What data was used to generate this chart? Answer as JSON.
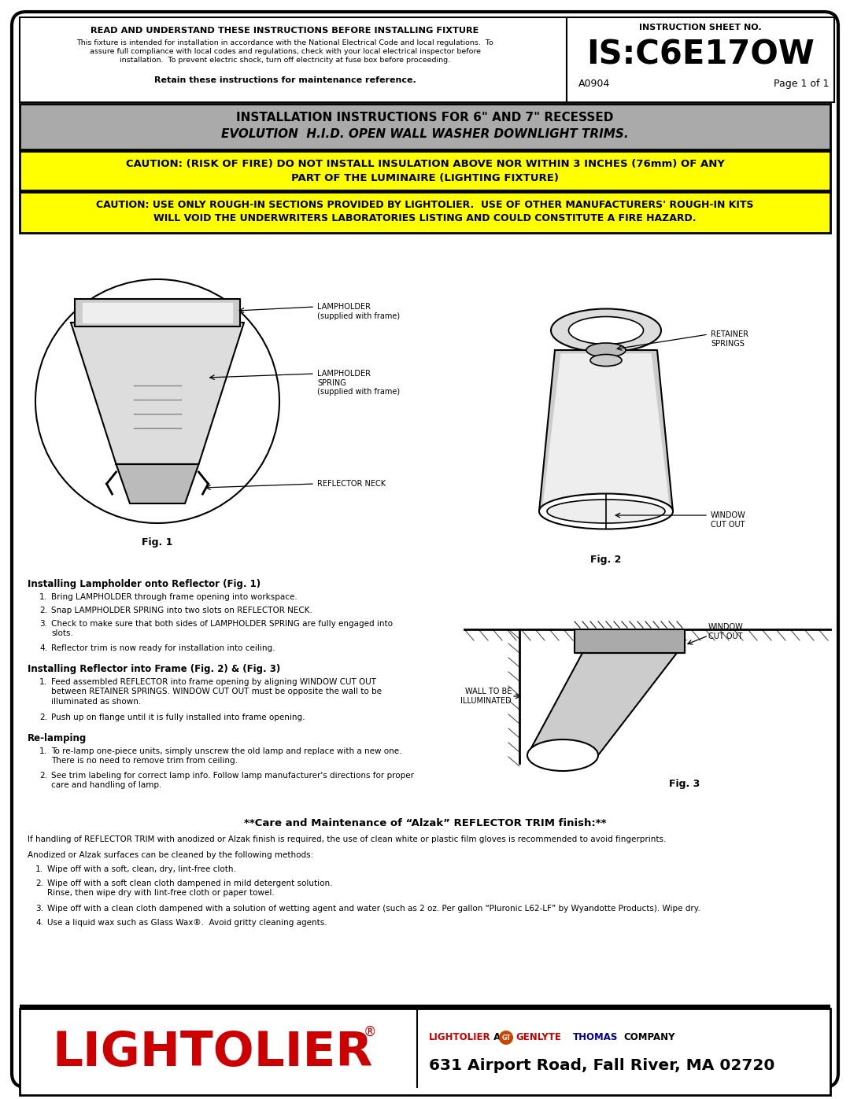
{
  "bg_color": "#ffffff",
  "header_title": "READ AND UNDERSTAND THESE INSTRUCTIONS BEFORE INSTALLING FIXTURE",
  "header_body1": "This fixture is intended for installation in accordance with the National Electrical Code and local regulations.  To",
  "header_body2": "assure full compliance with local codes and regulations, check with your local electrical inspector before",
  "header_body3": "installation.  To prevent electric shock, turn off electricity at fuse box before proceeding.",
  "header_bold": "Retain these instructions for maintenance reference.",
  "sheet_no_label": "INSTRUCTION SHEET NO.",
  "sheet_no": "IS:C6E17OW",
  "sheet_code": "A0904",
  "sheet_page": "Page 1 of 1",
  "install_title1": "INSTALLATION INSTRUCTIONS FOR 6\" AND 7\" RECESSED",
  "install_title2": "EVOLUTION  H.I.D. OPEN WALL WASHER DOWNLIGHT TRIMS.",
  "caution1_line1": "CAUTION: (RISK OF FIRE) DO NOT INSTALL INSULATION ABOVE NOR WITHIN 3 INCHES (76mm) OF ANY",
  "caution1_line2": "PART OF THE LUMINAIRE (LIGHTING FIXTURE)",
  "caution2_line1": "CAUTION: USE ONLY ROUGH-IN SECTIONS PROVIDED BY LIGHTOLIER.  USE OF OTHER MANUFACTURERS' ROUGH-IN KITS",
  "caution2_line2": "WILL VOID THE UNDERWRITERS LABORATORIES LISTING AND COULD CONSTITUTE A FIRE HAZARD.",
  "fig1_label": "Fig. 1",
  "fig2_label": "Fig. 2",
  "fig3_label": "Fig. 3",
  "label_lampholder": "LAMPHOLDER\n(supplied with frame)",
  "label_spring": "LAMPHOLDER\nSPRING\n(supplied with frame)",
  "label_reflector_neck": "REFLECTOR NECK",
  "label_retainer": "RETAINER\nSPRINGS",
  "label_window_fig2": "WINDOW\nCUT OUT",
  "label_window_fig3": "WINDOW\nCUT OUT",
  "label_wall": "WALL TO BE\nILLUMINATED",
  "section_install_lamp": "Installing Lampholder onto Reflector (Fig. 1)",
  "step1a": "Bring LAMPHOLDER through frame opening into workspace.",
  "step1b": "Snap LAMPHOLDER SPRING into two slots on REFLECTOR NECK.",
  "step1c": "Check to make sure that both sides of LAMPHOLDER SPRING are fully engaged into\nslots.",
  "step1d": "Reflector trim is now ready for installation into ceiling.",
  "section_install_ref": "Installing Reflector into Frame (Fig. 2) & (Fig. 3)",
  "step2a": "Feed assembled REFLECTOR into frame opening by aligning WINDOW CUT OUT\nbetween RETAINER SPRINGS. WINDOW CUT OUT must be opposite the wall to be\nilluminated as shown.",
  "step2b": "Push up on flange until it is fully installed into frame opening.",
  "section_relamp": "Re-lamping",
  "step3a": "To re-lamp one-piece units, simply unscrew the old lamp and replace with a new one.\nThere is no need to remove trim from ceiling.",
  "step3b": "See trim labeling for correct lamp info. Follow lamp manufacturer's directions for proper\ncare and handling of lamp.",
  "care_title": "**Care and Maintenance of “Alzak” REFLECTOR TRIM finish:**",
  "care_body": "If handling of REFLECTOR TRIM with anodized or Alzak finish is required, the use of clean white or plastic film gloves is recommended to avoid fingerprints.",
  "care_methods": "Anodized or Alzak surfaces can be cleaned by the following methods:",
  "care_step1": "Wipe off with a soft, clean, dry, lint-free cloth.",
  "care_step2": "Wipe off with a soft clean cloth dampened in mild detergent solution.\nRinse, then wipe dry with lint-free cloth or paper towel.",
  "care_step3": "Wipe off with a clean cloth dampened with a solution of wetting agent and water (such as 2 oz. Per gallon “Pluronic L62-LF” by Wyandotte Products). Wipe dry.",
  "care_step4": "Use a liquid wax such as Glass Wax®.  Avoid gritty cleaning agents.",
  "footer_logo": "LIGHTOLIER",
  "footer_address": "631 Airport Road, Fall River, MA 02720",
  "yellow": "#FFFF00",
  "gray_header": "#AAAAAA",
  "red_logo": "#CC0000",
  "blue_thomas": "#000099",
  "orange_gt": "#CC4400"
}
